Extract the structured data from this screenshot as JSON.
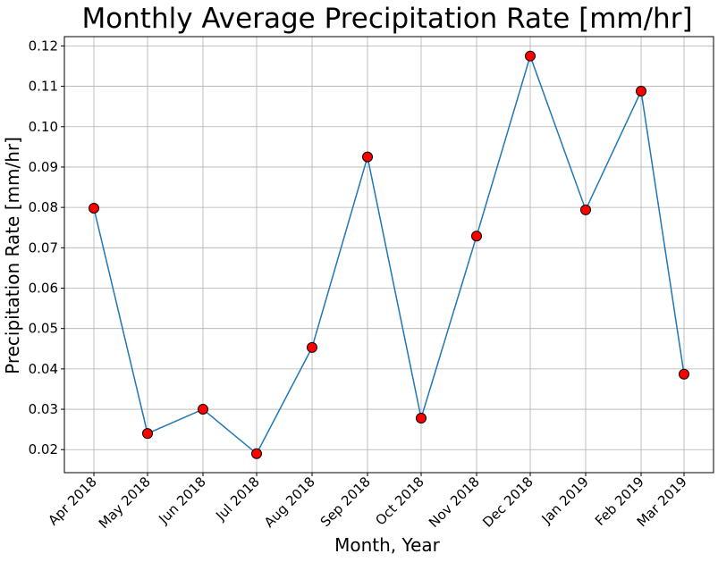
{
  "chart_data": {
    "type": "line",
    "title": "Monthly Average Precipitation Rate [mm/hr]",
    "xlabel": "Month, Year",
    "ylabel": "Precipitation Rate [mm/hr]",
    "categories": [
      "Apr 2018",
      "May 2018",
      "Jun 2018",
      "Jul 2018",
      "Aug 2018",
      "Sep 2018",
      "Oct 2018",
      "Nov 2018",
      "Dec 2018",
      "Jan 2019",
      "Feb 2019",
      "Mar 2019"
    ],
    "x_dates": [
      "2018-04-16",
      "2018-05-16",
      "2018-06-16",
      "2018-07-16",
      "2018-08-16",
      "2018-09-16",
      "2018-10-16",
      "2018-11-16",
      "2018-12-16",
      "2019-01-16",
      "2019-02-16",
      "2019-03-12"
    ],
    "series": [
      {
        "values": [
          0.0798,
          0.024,
          0.03,
          0.019,
          0.0453,
          0.0925,
          0.0278,
          0.0729,
          0.1175,
          0.0794,
          0.1088,
          0.0387
        ]
      }
    ],
    "yticks": [
      0.02,
      0.03,
      0.04,
      0.05,
      0.06,
      0.07,
      0.08,
      0.09,
      0.1,
      0.11,
      0.12
    ],
    "ytick_labels": [
      "0.02",
      "0.03",
      "0.04",
      "0.05",
      "0.06",
      "0.07",
      "0.08",
      "0.09",
      "0.10",
      "0.11",
      "0.12"
    ],
    "ylim": [
      0.0143,
      0.1223
    ],
    "grid": true,
    "colors": {
      "line": "#1f77b4",
      "marker_fill": "#ff0000",
      "marker_edge": "#000000",
      "grid": "#b0b0b0"
    }
  }
}
